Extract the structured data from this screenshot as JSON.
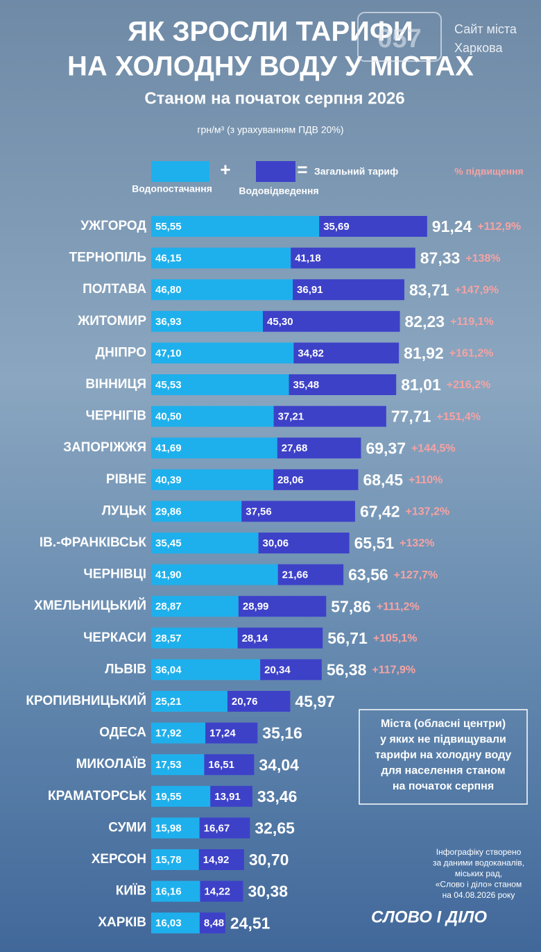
{
  "chart_data": {
    "type": "bar",
    "orientation": "horizontal",
    "stacked": true,
    "title_lines": [
      "ЯК ЗРОСЛИ ТАРИФИ",
      "НА ХОЛОДНУ ВОДУ У МІСТАХ"
    ],
    "subtitle": "Станом на початок серпня 2026",
    "unit": "грн/м³ (з урахуванням ПДВ 20%)",
    "total_label": "Загальний тариф",
    "increase_title": "% підвищення",
    "categories": [
      "УЖГОРОД",
      "ТЕРНОПІЛЬ",
      "ПОЛТАВА",
      "ЖИТОМИР",
      "ДНІПРО",
      "ВІННИЦЯ",
      "ЧЕРНІГІВ",
      "ЗАПОРІЖЖЯ",
      "РІВНЕ",
      "ЛУЦЬК",
      "ІВ.-ФРАНКІВСЬК",
      "ЧЕРНІВЦІ",
      "ХМЕЛЬНИЦЬКИЙ",
      "ЧЕРКАСИ",
      "ЛЬВІВ",
      "КРОПИВНИЦЬКИЙ",
      "ОДЕСА",
      "МИКОЛАЇВ",
      "КРАМАТОРСЬК",
      "СУМИ",
      "ХЕРСОН",
      "КИЇВ",
      "ХАРКІВ"
    ],
    "series": [
      {
        "name": "Водопостачання",
        "color": "#1eb0ec",
        "values": [
          55.55,
          46.15,
          46.8,
          36.93,
          47.1,
          45.53,
          40.5,
          41.69,
          40.39,
          29.86,
          35.45,
          41.9,
          28.87,
          28.57,
          36.04,
          25.21,
          17.92,
          17.53,
          19.55,
          15.98,
          15.78,
          16.16,
          16.03
        ],
        "value_labels": [
          "55,55",
          "46,15",
          "46,80",
          "36,93",
          "47,10",
          "45,53",
          "40,50",
          "41,69",
          "40,39",
          "29,86",
          "35,45",
          "41,90",
          "28,87",
          "28,57",
          "36,04",
          "25,21",
          "17,92",
          "17,53",
          "19,55",
          "15,98",
          "15,78",
          "16,16",
          "16,03"
        ]
      },
      {
        "name": "Водовідведення",
        "color": "#3d41c8",
        "values": [
          35.69,
          41.18,
          36.91,
          45.3,
          34.82,
          35.48,
          37.21,
          27.68,
          28.06,
          37.56,
          30.06,
          21.66,
          28.99,
          28.14,
          20.34,
          20.76,
          17.24,
          16.51,
          13.91,
          16.67,
          14.92,
          14.22,
          8.48
        ],
        "value_labels": [
          "35,69",
          "41,18",
          "36,91",
          "45,30",
          "34,82",
          "35,48",
          "37,21",
          "27,68",
          "28,06",
          "37,56",
          "30,06",
          "21,66",
          "28,99",
          "28,14",
          "20,34",
          "20,76",
          "17,24",
          "16,51",
          "13,91",
          "16,67",
          "14,92",
          "14,22",
          "8,48"
        ]
      }
    ],
    "totals": [
      91.24,
      87.33,
      83.71,
      82.23,
      81.92,
      81.01,
      77.71,
      69.37,
      68.45,
      67.42,
      65.51,
      63.56,
      57.86,
      56.71,
      56.38,
      45.97,
      35.16,
      34.04,
      33.46,
      32.65,
      30.7,
      30.38,
      24.51
    ],
    "total_value_labels": [
      "91,24",
      "87,33",
      "83,71",
      "82,23",
      "81,92",
      "81,01",
      "77,71",
      "69,37",
      "68,45",
      "67,42",
      "65,51",
      "63,56",
      "57,86",
      "56,71",
      "56,38",
      "45,97",
      "35,16",
      "34,04",
      "33,46",
      "32,65",
      "30,70",
      "30,38",
      "24,51"
    ],
    "increase_labels": [
      "+112,9%",
      "+138%",
      "+147,9%",
      "+119,1%",
      "+161,2%",
      "+216,2%",
      "+151,4%",
      "+144,5%",
      "+110%",
      "+137,2%",
      "+132%",
      "+127,7%",
      "+111,2%",
      "+105,1%",
      "+117,9%"
    ],
    "note_lines": [
      "Міста (обласні центри)",
      "у яких не підвищували",
      "тарифи на холодну воду",
      "для населення станом",
      "на початок серпня"
    ],
    "credit_lines": [
      "Інфографіку створено",
      "за даними водоканалів,",
      "міських рад,",
      "«Слово і діло» станом",
      "на 04.08.2026 року"
    ],
    "brand": "СЛОВО І ДІЛО",
    "site_lines": [
      "Сайт міста",
      "Харкова"
    ],
    "site_logo": "057"
  }
}
